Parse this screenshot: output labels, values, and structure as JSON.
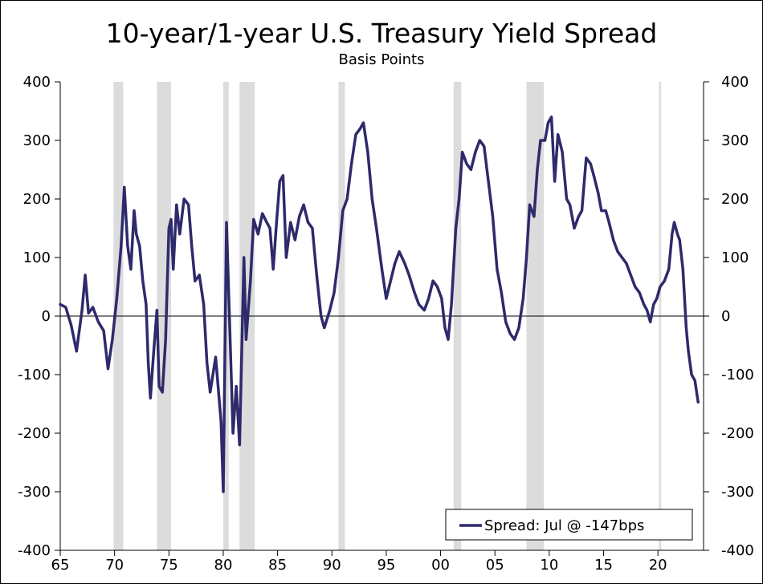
{
  "chart_data": {
    "type": "line",
    "title": "10-year/1-year U.S. Treasury Yield Spread",
    "subtitle": "Basis Points",
    "xlabel": "",
    "ylabel": "",
    "xlim": [
      1965,
      2024.2
    ],
    "ylim": [
      -400,
      400
    ],
    "y_ticks": [
      400,
      300,
      200,
      100,
      0,
      -100,
      -200,
      -300,
      -400
    ],
    "x_ticks": [
      {
        "label": "65",
        "value": 1965
      },
      {
        "label": "70",
        "value": 1970
      },
      {
        "label": "75",
        "value": 1975
      },
      {
        "label": "80",
        "value": 1980
      },
      {
        "label": "85",
        "value": 1985
      },
      {
        "label": "90",
        "value": 1990
      },
      {
        "label": "95",
        "value": 1995
      },
      {
        "label": "00",
        "value": 2000
      },
      {
        "label": "05",
        "value": 2005
      },
      {
        "label": "10",
        "value": 2010
      },
      {
        "label": "15",
        "value": 2015
      },
      {
        "label": "20",
        "value": 2020
      }
    ],
    "recessions": [
      [
        1969.9,
        1970.8
      ],
      [
        1973.9,
        1975.2
      ],
      [
        1980.0,
        1980.5
      ],
      [
        1981.5,
        1982.9
      ],
      [
        1990.6,
        1991.2
      ],
      [
        2001.2,
        2001.9
      ],
      [
        2007.9,
        2009.5
      ],
      [
        2020.1,
        2020.3
      ]
    ],
    "legend_position": "bottom-right",
    "series": [
      {
        "name": "Spread: Jul @ -147bps",
        "color": "#2e2a6b",
        "points": [
          [
            1965.0,
            20
          ],
          [
            1965.5,
            15
          ],
          [
            1966.0,
            -15
          ],
          [
            1966.5,
            -60
          ],
          [
            1967.0,
            10
          ],
          [
            1967.3,
            70
          ],
          [
            1967.6,
            5
          ],
          [
            1968.0,
            15
          ],
          [
            1968.5,
            -10
          ],
          [
            1969.0,
            -25
          ],
          [
            1969.4,
            -90
          ],
          [
            1969.8,
            -40
          ],
          [
            1970.2,
            30
          ],
          [
            1970.6,
            120
          ],
          [
            1970.9,
            220
          ],
          [
            1971.2,
            120
          ],
          [
            1971.5,
            80
          ],
          [
            1971.8,
            180
          ],
          [
            1972.0,
            140
          ],
          [
            1972.3,
            120
          ],
          [
            1972.6,
            60
          ],
          [
            1972.9,
            20
          ],
          [
            1973.1,
            -80
          ],
          [
            1973.3,
            -140
          ],
          [
            1973.6,
            -60
          ],
          [
            1973.9,
            10
          ],
          [
            1974.1,
            -120
          ],
          [
            1974.4,
            -130
          ],
          [
            1974.7,
            -40
          ],
          [
            1975.0,
            150
          ],
          [
            1975.2,
            165
          ],
          [
            1975.4,
            80
          ],
          [
            1975.7,
            190
          ],
          [
            1976.0,
            140
          ],
          [
            1976.4,
            200
          ],
          [
            1976.8,
            190
          ],
          [
            1977.1,
            120
          ],
          [
            1977.4,
            60
          ],
          [
            1977.8,
            70
          ],
          [
            1978.2,
            20
          ],
          [
            1978.5,
            -80
          ],
          [
            1978.8,
            -130
          ],
          [
            1979.3,
            -70
          ],
          [
            1979.8,
            -180
          ],
          [
            1980.0,
            -300
          ],
          [
            1980.3,
            160
          ],
          [
            1980.6,
            -20
          ],
          [
            1980.9,
            -200
          ],
          [
            1981.2,
            -120
          ],
          [
            1981.5,
            -220
          ],
          [
            1981.9,
            100
          ],
          [
            1982.1,
            -40
          ],
          [
            1982.5,
            60
          ],
          [
            1982.8,
            165
          ],
          [
            1983.2,
            140
          ],
          [
            1983.6,
            175
          ],
          [
            1984.0,
            160
          ],
          [
            1984.3,
            150
          ],
          [
            1984.6,
            80
          ],
          [
            1984.9,
            160
          ],
          [
            1985.2,
            230
          ],
          [
            1985.5,
            240
          ],
          [
            1985.8,
            100
          ],
          [
            1986.2,
            160
          ],
          [
            1986.6,
            130
          ],
          [
            1987.0,
            170
          ],
          [
            1987.4,
            190
          ],
          [
            1987.8,
            160
          ],
          [
            1988.2,
            150
          ],
          [
            1988.6,
            70
          ],
          [
            1989.0,
            0
          ],
          [
            1989.3,
            -20
          ],
          [
            1989.8,
            10
          ],
          [
            1990.2,
            40
          ],
          [
            1990.6,
            100
          ],
          [
            1991.0,
            180
          ],
          [
            1991.4,
            200
          ],
          [
            1991.8,
            260
          ],
          [
            1992.2,
            310
          ],
          [
            1992.6,
            320
          ],
          [
            1992.9,
            330
          ],
          [
            1993.3,
            280
          ],
          [
            1993.7,
            200
          ],
          [
            1994.1,
            150
          ],
          [
            1994.6,
            80
          ],
          [
            1995.0,
            30
          ],
          [
            1995.4,
            60
          ],
          [
            1995.8,
            90
          ],
          [
            1996.2,
            110
          ],
          [
            1996.7,
            90
          ],
          [
            1997.1,
            70
          ],
          [
            1997.6,
            40
          ],
          [
            1998.0,
            20
          ],
          [
            1998.5,
            10
          ],
          [
            1998.9,
            30
          ],
          [
            1999.3,
            60
          ],
          [
            1999.7,
            50
          ],
          [
            2000.1,
            30
          ],
          [
            2000.4,
            -20
          ],
          [
            2000.7,
            -40
          ],
          [
            2001.0,
            20
          ],
          [
            2001.4,
            150
          ],
          [
            2001.7,
            200
          ],
          [
            2002.0,
            280
          ],
          [
            2002.4,
            260
          ],
          [
            2002.8,
            250
          ],
          [
            2003.2,
            280
          ],
          [
            2003.6,
            300
          ],
          [
            2004.0,
            290
          ],
          [
            2004.4,
            230
          ],
          [
            2004.8,
            170
          ],
          [
            2005.2,
            80
          ],
          [
            2005.6,
            40
          ],
          [
            2006.0,
            -10
          ],
          [
            2006.4,
            -30
          ],
          [
            2006.8,
            -40
          ],
          [
            2007.2,
            -20
          ],
          [
            2007.6,
            30
          ],
          [
            2007.9,
            100
          ],
          [
            2008.2,
            190
          ],
          [
            2008.6,
            170
          ],
          [
            2008.9,
            250
          ],
          [
            2009.2,
            300
          ],
          [
            2009.6,
            300
          ],
          [
            2009.9,
            330
          ],
          [
            2010.2,
            340
          ],
          [
            2010.5,
            230
          ],
          [
            2010.8,
            310
          ],
          [
            2011.2,
            280
          ],
          [
            2011.6,
            200
          ],
          [
            2011.9,
            190
          ],
          [
            2012.3,
            150
          ],
          [
            2012.7,
            170
          ],
          [
            2013.0,
            180
          ],
          [
            2013.4,
            270
          ],
          [
            2013.8,
            260
          ],
          [
            2014.1,
            240
          ],
          [
            2014.5,
            210
          ],
          [
            2014.8,
            180
          ],
          [
            2015.2,
            180
          ],
          [
            2015.5,
            160
          ],
          [
            2015.9,
            130
          ],
          [
            2016.3,
            110
          ],
          [
            2016.7,
            100
          ],
          [
            2017.1,
            90
          ],
          [
            2017.5,
            70
          ],
          [
            2017.9,
            50
          ],
          [
            2018.3,
            40
          ],
          [
            2018.7,
            20
          ],
          [
            2019.0,
            10
          ],
          [
            2019.3,
            -10
          ],
          [
            2019.6,
            20
          ],
          [
            2019.9,
            30
          ],
          [
            2020.2,
            50
          ],
          [
            2020.6,
            60
          ],
          [
            2021.0,
            80
          ],
          [
            2021.3,
            140
          ],
          [
            2021.5,
            160
          ],
          [
            2021.8,
            140
          ],
          [
            2022.0,
            130
          ],
          [
            2022.3,
            80
          ],
          [
            2022.6,
            -20
          ],
          [
            2022.8,
            -60
          ],
          [
            2023.1,
            -100
          ],
          [
            2023.4,
            -110
          ],
          [
            2023.7,
            -147
          ]
        ]
      }
    ]
  }
}
